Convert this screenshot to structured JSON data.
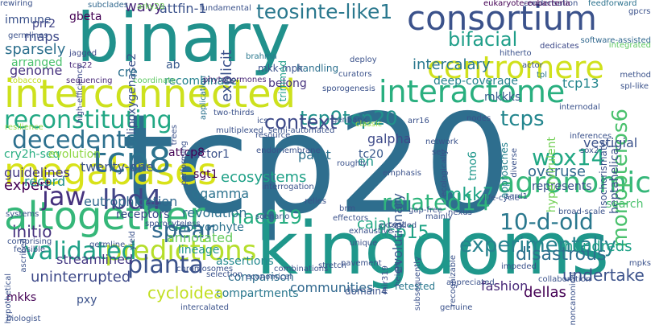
{
  "words": [
    {
      "text": "tcp20",
      "color": "#2e6e8e"
    },
    {
      "text": "binary",
      "color": "#21918c"
    },
    {
      "text": "kingdoms",
      "color": "#1f978b"
    },
    {
      "text": "consortium",
      "color": "#3b528b"
    },
    {
      "text": "interconnected",
      "color": "#cde11d"
    },
    {
      "text": "altogether",
      "color": "#35b779"
    },
    {
      "text": "megabases",
      "color": "#d8e219"
    },
    {
      "text": "centromere",
      "color": "#d0e11c"
    },
    {
      "text": "interactome",
      "color": "#29af7f"
    },
    {
      "text": "tcp8",
      "color": "#2c728e"
    },
    {
      "text": "predictions",
      "color": "#b5de2b"
    },
    {
      "text": "agronomic",
      "color": "#35b779"
    },
    {
      "text": "experimentally",
      "color": "#26828e"
    },
    {
      "text": "teosinte-like1",
      "color": "#2a788e"
    },
    {
      "text": "reconstituting",
      "color": "#22a884"
    },
    {
      "text": "decedents",
      "color": "#2d708e"
    },
    {
      "text": "tcp9tcp20",
      "color": "#21918c"
    },
    {
      "text": "context",
      "color": "#3e4a89"
    },
    {
      "text": "related14",
      "color": "#2fb47c"
    },
    {
      "text": "10-d-old",
      "color": "#2a788e"
    },
    {
      "text": "validated",
      "color": "#1fa187"
    },
    {
      "text": "planta",
      "color": "#3b528b"
    },
    {
      "text": "spear",
      "color": "#31688e"
    },
    {
      "text": "lbd4",
      "color": "#414487"
    },
    {
      "text": "nac019",
      "color": "#27ad81"
    },
    {
      "text": "tcp15",
      "color": "#20a486"
    },
    {
      "text": "wox14",
      "color": "#22a884"
    },
    {
      "text": "monopteros6",
      "color": "#4ac16d"
    },
    {
      "text": "bifacial",
      "color": "#1f9e89"
    },
    {
      "text": "jaw",
      "color": "#46327e"
    },
    {
      "text": "tcps",
      "color": "#24868e"
    },
    {
      "text": "mkk7",
      "color": "#20a486"
    },
    {
      "text": "disastrous",
      "color": "#2d708e"
    },
    {
      "text": "overuse",
      "color": "#31688e"
    },
    {
      "text": "represents",
      "color": "#3b528b"
    },
    {
      "text": "evolutionary",
      "color": "#38588c"
    },
    {
      "text": "hypervirulent",
      "color": "#73d056"
    },
    {
      "text": "intercalary",
      "color": "#2a788e"
    },
    {
      "text": "deep-coverage",
      "color": "#26828e"
    },
    {
      "text": "mkkks",
      "color": "#365c8d"
    },
    {
      "text": "heptahelical",
      "color": "#3b528b"
    },
    {
      "text": "hundreds",
      "color": "#1fa187"
    },
    {
      "text": "undertake",
      "color": "#3b528b"
    },
    {
      "text": "fashion",
      "color": "#482878"
    },
    {
      "text": "retested",
      "color": "#2a788e"
    },
    {
      "text": "dellas",
      "color": "#440154"
    },
    {
      "text": "communities",
      "color": "#31688e"
    },
    {
      "text": "domain4",
      "color": "#3b528b"
    },
    {
      "text": "compartments",
      "color": "#2a788e"
    },
    {
      "text": "cycloidea",
      "color": "#c2df23"
    },
    {
      "text": "uninterrupted",
      "color": "#3e4a89"
    },
    {
      "text": "streamlined",
      "color": "#443983"
    },
    {
      "text": "comparison",
      "color": "#2e6e8e"
    },
    {
      "text": "assertions",
      "color": "#23898e"
    },
    {
      "text": "lineage",
      "color": "#1f958b"
    },
    {
      "text": "annotated",
      "color": "#65cb5e"
    },
    {
      "text": "embryophyte",
      "color": "#2c728e"
    },
    {
      "text": "revolution",
      "color": "#2d708e"
    },
    {
      "text": "receptors",
      "color": "#3e4a89"
    },
    {
      "text": "eutrophication",
      "color": "#31688e"
    },
    {
      "text": "ecosystems",
      "color": "#1fa187"
    },
    {
      "text": "expert",
      "color": "#440154"
    },
    {
      "text": "initio",
      "color": "#46327e"
    },
    {
      "text": "guidelines",
      "color": "#443983"
    },
    {
      "text": "twenty-one",
      "color": "#3b528b"
    },
    {
      "text": "cry2h-seq",
      "color": "#27ad81"
    },
    {
      "text": "evolution",
      "color": "#8fd744"
    },
    {
      "text": "record",
      "color": "#21918c"
    },
    {
      "text": "sgt1",
      "color": "#440154"
    },
    {
      "text": "factor1",
      "color": "#3b528b"
    },
    {
      "text": "ggamma",
      "color": "#2c728e"
    },
    {
      "text": "paint",
      "color": "#2c728e"
    },
    {
      "text": "en",
      "color": "#1f978b"
    },
    {
      "text": "galpha",
      "color": "#3e4a89"
    },
    {
      "text": "tc20",
      "color": "#38588c"
    },
    {
      "text": "cajal",
      "color": "#22a884"
    },
    {
      "text": "tmo6",
      "color": "#1f978b"
    },
    {
      "text": "approaches",
      "color": "#26828e"
    },
    {
      "text": "vestigial",
      "color": "#3b528b"
    },
    {
      "text": "isochorismate",
      "color": "#3b528b"
    },
    {
      "text": "search",
      "color": "#4ac16d"
    },
    {
      "text": "tcp13",
      "color": "#24868e"
    },
    {
      "text": "recombinase",
      "color": "#26828e"
    },
    {
      "text": "lipoxygenase2",
      "color": "#3b528b"
    },
    {
      "text": "genome",
      "color": "#46327e"
    },
    {
      "text": "sparsely",
      "color": "#2d708e"
    },
    {
      "text": "arranged",
      "color": "#4ac16d"
    },
    {
      "text": "maps",
      "color": "#3e4a89"
    },
    {
      "text": "prr2",
      "color": "#414487"
    },
    {
      "text": "immune",
      "color": "#3b528b"
    },
    {
      "text": "gbeta",
      "color": "#440154"
    },
    {
      "text": "wavy",
      "color": "#482878"
    },
    {
      "text": "attfin-1",
      "color": "#3b528b"
    },
    {
      "text": "cre",
      "color": "#2d708e"
    },
    {
      "text": "ab",
      "color": "#38588c"
    },
    {
      "text": "explicit",
      "color": "#3b528b"
    },
    {
      "text": "handling",
      "color": "#2d708e"
    },
    {
      "text": "mkk-mpk",
      "color": "#3b528b"
    },
    {
      "text": "belong",
      "color": "#46327e"
    },
    {
      "text": "trimmed",
      "color": "#1f9e89"
    },
    {
      "text": "attcp8",
      "color": "#440154"
    },
    {
      "text": "mkks",
      "color": "#440154"
    },
    {
      "text": "pxy",
      "color": "#3b528b"
    },
    {
      "text": "condensation",
      "color": "#3b528b"
    },
    {
      "text": "eukaryote-eubacteria",
      "color": "#440154"
    },
    {
      "text": "feedforward",
      "color": "#2c728e"
    },
    {
      "text": "gpcrs",
      "color": "#3b528b"
    },
    {
      "text": "integrated",
      "color": "#5ec962"
    },
    {
      "text": "dedicates",
      "color": "#3e4a89"
    },
    {
      "text": "software-assisted",
      "color": "#31688e"
    },
    {
      "text": "hitherto",
      "color": "#3b528b"
    },
    {
      "text": "deploy",
      "color": "#3b528b"
    },
    {
      "text": "brahma",
      "color": "#2a788e"
    },
    {
      "text": "fundamental",
      "color": "#3b528b"
    },
    {
      "text": "arky28",
      "color": "#6ece58"
    },
    {
      "text": "subclades",
      "color": "#31688e"
    },
    {
      "text": "germlines",
      "color": "#3b528b"
    },
    {
      "text": "jagged",
      "color": "#3e4a89"
    },
    {
      "text": "tcp22",
      "color": "#482878"
    },
    {
      "text": "high-efficiency",
      "color": "#3e4a89"
    },
    {
      "text": "application",
      "color": "#2c728e"
    },
    {
      "text": "curators",
      "color": "#3b528b"
    },
    {
      "text": "sporogenesis",
      "color": "#3b528b"
    },
    {
      "text": "sequencing",
      "color": "#482878"
    },
    {
      "text": "coordinate",
      "color": "#5ec962"
    },
    {
      "text": "phytohormones",
      "color": "#482878"
    },
    {
      "text": "tobacco",
      "color": "#c2df23"
    },
    {
      "text": "actor",
      "color": "#3b528b"
    },
    {
      "text": "tpl",
      "color": "#2a788e"
    },
    {
      "text": "method",
      "color": "#3b528b"
    },
    {
      "text": "spl-like",
      "color": "#3b528b"
    },
    {
      "text": "genbank",
      "color": "#3b528b"
    },
    {
      "text": "arr16",
      "color": "#3b528b"
    },
    {
      "text": "nodes",
      "color": "#3b528b"
    },
    {
      "text": "internodal",
      "color": "#3b528b"
    },
    {
      "text": "two-thirds",
      "color": "#3b528b"
    },
    {
      "text": "ics",
      "color": "#3b528b"
    },
    {
      "text": "semi-automated",
      "color": "#3b528b"
    },
    {
      "text": "classic",
      "color": "#a0da39"
    },
    {
      "text": "multiplexed",
      "color": "#3b528b"
    },
    {
      "text": "resource",
      "color": "#3b528b"
    },
    {
      "text": "resilience",
      "color": "#8fd744"
    },
    {
      "text": "trees",
      "color": "#3b528b"
    },
    {
      "text": "performing",
      "color": "#3b528b"
    },
    {
      "text": "endomembrane",
      "color": "#3b528b"
    },
    {
      "text": "roughly",
      "color": "#3b528b"
    },
    {
      "text": "emphasis",
      "color": "#3b528b"
    },
    {
      "text": "network",
      "color": "#3b528b"
    },
    {
      "text": "set",
      "color": "#3b528b"
    },
    {
      "text": "ecologically",
      "color": "#3b528b"
    },
    {
      "text": "diverse",
      "color": "#3b528b"
    },
    {
      "text": "inferences",
      "color": "#3b528b"
    },
    {
      "text": "sox2",
      "color": "#3b528b"
    },
    {
      "text": "systems",
      "color": "#3b528b"
    },
    {
      "text": "sporocyteless",
      "color": "#3b528b"
    },
    {
      "text": "scenario",
      "color": "#3b528b"
    },
    {
      "text": "interrogation",
      "color": "#3b528b"
    },
    {
      "text": "comprising",
      "color": "#3b528b"
    },
    {
      "text": "ascribed",
      "color": "#3b528b"
    },
    {
      "text": "relies",
      "color": "#3b528b"
    },
    {
      "text": "nexus",
      "color": "#3b528b"
    },
    {
      "text": "life-cycle",
      "color": "#3b528b"
    },
    {
      "text": "broad-scale",
      "color": "#3b528b"
    },
    {
      "text": "yield",
      "color": "#3b528b"
    },
    {
      "text": "brm",
      "color": "#3b528b"
    },
    {
      "text": "gap-free",
      "color": "#3b528b"
    },
    {
      "text": "sard1",
      "color": "#3b528b"
    },
    {
      "text": "effectors",
      "color": "#3b528b"
    },
    {
      "text": "cost",
      "color": "#3b528b"
    },
    {
      "text": "mainly",
      "color": "#3b528b"
    },
    {
      "text": "exhaustive",
      "color": "#3b528b"
    },
    {
      "text": "unique",
      "color": "#3b528b"
    },
    {
      "text": "extended",
      "color": "#3b528b"
    },
    {
      "text": "feasible",
      "color": "#3b528b"
    },
    {
      "text": "germline",
      "color": "#3b528b"
    },
    {
      "text": "chromosomes",
      "color": "#3b528b"
    },
    {
      "text": "selection",
      "color": "#3b528b"
    },
    {
      "text": "pavement",
      "color": "#3b528b"
    },
    {
      "text": "height",
      "color": "#3b528b"
    },
    {
      "text": "mir319",
      "color": "#3b528b"
    },
    {
      "text": "recognizable",
      "color": "#3b528b"
    },
    {
      "text": "subsequently",
      "color": "#3b528b"
    },
    {
      "text": "appreciated",
      "color": "#3b528b"
    },
    {
      "text": "mpks",
      "color": "#3b528b"
    },
    {
      "text": "impeded",
      "color": "#3b528b"
    },
    {
      "text": "collaboration",
      "color": "#3b528b"
    },
    {
      "text": "noncanonical",
      "color": "#3b528b"
    },
    {
      "text": "hypothetical",
      "color": "#3b528b"
    },
    {
      "text": "combinations",
      "color": "#3b528b"
    },
    {
      "text": "economical",
      "color": "#3b528b"
    },
    {
      "text": "stretch",
      "color": "#3b528b"
    },
    {
      "text": "intercalated",
      "color": "#3b528b"
    },
    {
      "text": "biologist",
      "color": "#3b528b"
    },
    {
      "text": "genuine",
      "color": "#3b528b"
    },
    {
      "text": "rewiring",
      "color": "#3b528b"
    }
  ]
}
